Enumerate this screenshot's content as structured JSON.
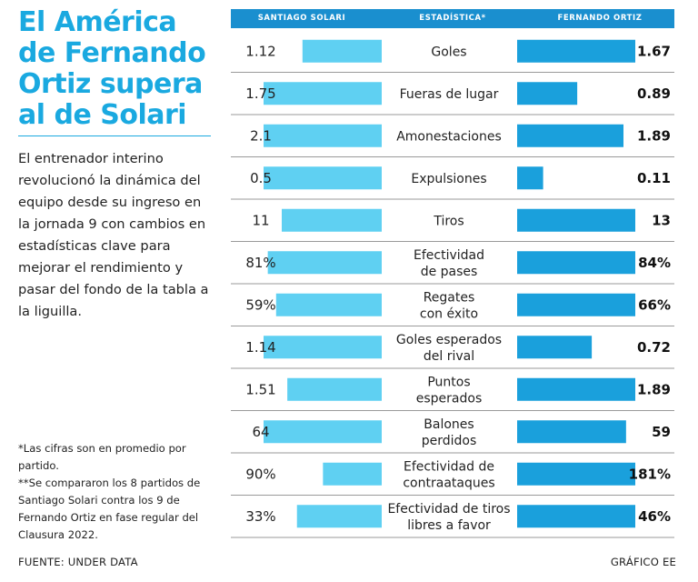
{
  "title": "El América de Fernando Ortiz supera al de Solari",
  "intro": "El entrenador interino revolucionó la dinámica del equipo desde su ingreso en la jornada 9 con cambios en estadísticas clave para mejorar el rendimiento y pasar del fondo de la tabla a la liguilla.",
  "notes": [
    "*Las cifras son en promedio por partido.",
    "**Se compararon los 8 partidos de Santiago Solari contra los 9 de Fernando Ortiz en fase regular del Clausura 2022."
  ],
  "source": "FUENTE: UNDER DATA",
  "credit": "GRÁFICO EE",
  "colors": {
    "left_bar": "#5fd0f2",
    "right_bar": "#1aa0dc",
    "header": "#1a8fcf",
    "title": "#1aa9e0"
  },
  "chart_data": {
    "type": "bar",
    "columns": {
      "left": "SANTIAGO SOLARI",
      "center": "ESTADÍSTICA*",
      "right": "FERNANDO ORTIZ"
    },
    "series": [
      {
        "name": "Santiago Solari",
        "values": [
          1.12,
          1.75,
          2.1,
          0.5,
          11,
          81,
          59,
          1.14,
          1.51,
          64,
          90,
          33
        ]
      },
      {
        "name": "Fernando Ortiz",
        "values": [
          1.67,
          0.89,
          1.89,
          0.11,
          13,
          84,
          66,
          0.72,
          1.89,
          59,
          181,
          46
        ]
      }
    ],
    "rows": [
      {
        "label": [
          "Goles"
        ],
        "left": "1.12",
        "right": "1.67"
      },
      {
        "label": [
          "Fueras de lugar"
        ],
        "left": "1.75",
        "right": "0.89"
      },
      {
        "label": [
          "Amonestaciones"
        ],
        "left": "2.1",
        "right": "1.89"
      },
      {
        "label": [
          "Expulsiones"
        ],
        "left": "0.5",
        "right": "0.11"
      },
      {
        "label": [
          "Tiros"
        ],
        "left": "11",
        "right": "13"
      },
      {
        "label": [
          "Efectividad",
          "de pases"
        ],
        "left": "81%",
        "right": "84%"
      },
      {
        "label": [
          "Regates",
          "con éxito"
        ],
        "left": "59%",
        "right": "66%"
      },
      {
        "label": [
          "Goles esperados",
          "del rival"
        ],
        "left": "1.14",
        "right": "0.72"
      },
      {
        "label": [
          "Puntos",
          "esperados"
        ],
        "left": "1.51",
        "right": "1.89"
      },
      {
        "label": [
          "Balones",
          "perdidos"
        ],
        "left": "64",
        "right": "59"
      },
      {
        "label": [
          "Efectividad de",
          "contraataques"
        ],
        "left": "90%",
        "right": "181%"
      },
      {
        "label": [
          "Efectividad de tiros",
          "libres a favor"
        ],
        "left": "33%",
        "right": "46%"
      }
    ]
  }
}
